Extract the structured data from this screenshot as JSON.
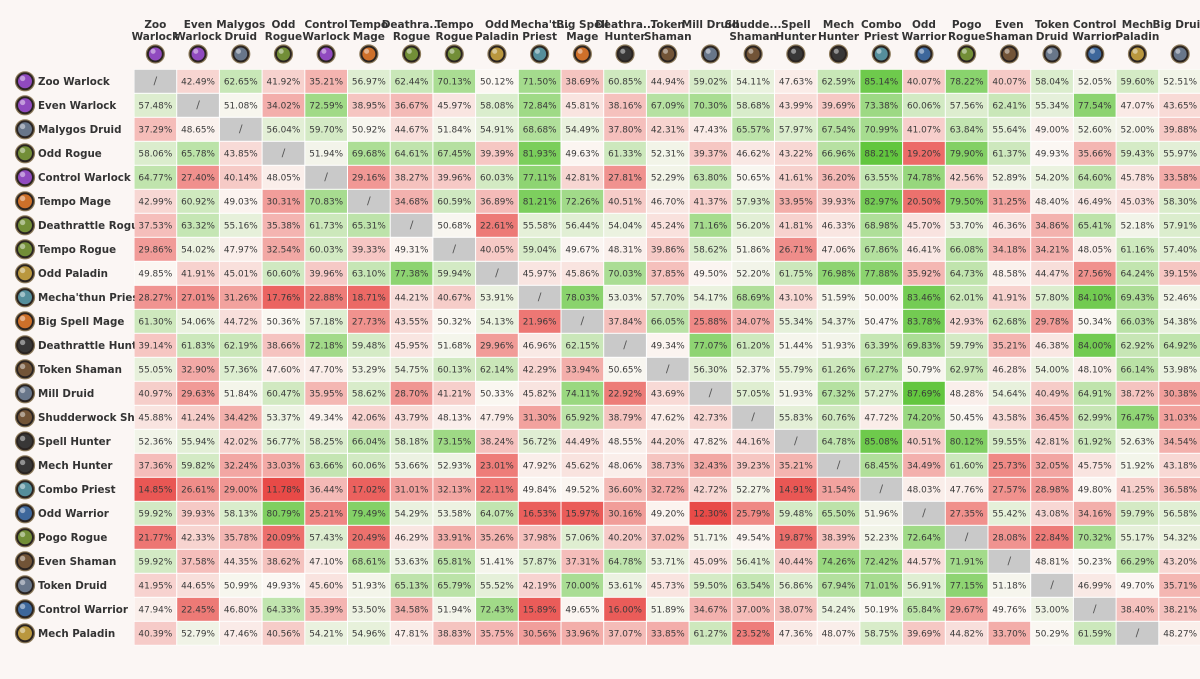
{
  "chart_data": {
    "type": "heatmap",
    "title": "",
    "value_format": "percent",
    "diagonal_mark": "/",
    "color_scale": {
      "low": "#e84a47",
      "mid": "#fbf7f3",
      "high": "#62c63e",
      "diagonal": "#c9c9c9",
      "domain": [
        12,
        50,
        88
      ]
    },
    "columns": [
      {
        "line1": "Zoo",
        "line2": "Warlock",
        "icon": "warlock-icon",
        "color": "#9b4fd0"
      },
      {
        "line1": "Even",
        "line2": "Warlock",
        "icon": "warlock-icon",
        "color": "#9b4fd0"
      },
      {
        "line1": "Malygos",
        "line2": "Druid",
        "icon": "druid-icon",
        "color": "#6f7f96"
      },
      {
        "line1": "Odd",
        "line2": "Rogue",
        "icon": "rogue-icon",
        "color": "#7a9a3a"
      },
      {
        "line1": "Control",
        "line2": "Warlock",
        "icon": "warlock-icon",
        "color": "#9b4fd0"
      },
      {
        "line1": "Tempo",
        "line2": "Mage",
        "icon": "mage-icon",
        "color": "#e0792b"
      },
      {
        "line1": "Deathra...",
        "line2": "Rogue",
        "icon": "rogue-icon",
        "color": "#7a9a3a"
      },
      {
        "line1": "Tempo",
        "line2": "Rogue",
        "icon": "rogue-icon",
        "color": "#7a9a3a"
      },
      {
        "line1": "Odd",
        "line2": "Paladin",
        "icon": "paladin-icon",
        "color": "#c9a441"
      },
      {
        "line1": "Mecha't...",
        "line2": "Priest",
        "icon": "priest-icon",
        "color": "#5a9aa8"
      },
      {
        "line1": "Big Spell",
        "line2": "Mage",
        "icon": "mage-icon",
        "color": "#e0792b"
      },
      {
        "line1": "Deathra...",
        "line2": "Hunter",
        "icon": "hunter-icon",
        "color": "#3a3a3a"
      },
      {
        "line1": "Token",
        "line2": "Shaman",
        "icon": "shaman-icon",
        "color": "#7a5a3a"
      },
      {
        "line1": "Mill Druid",
        "line2": "",
        "icon": "druid-icon",
        "color": "#6f7f96"
      },
      {
        "line1": "Shudde...",
        "line2": "Shaman",
        "icon": "shaman-icon",
        "color": "#7a5a3a"
      },
      {
        "line1": "Spell",
        "line2": "Hunter",
        "icon": "hunter-icon",
        "color": "#3a3a3a"
      },
      {
        "line1": "Mech",
        "line2": "Hunter",
        "icon": "hunter-icon",
        "color": "#3a3a3a"
      },
      {
        "line1": "Combo",
        "line2": "Priest",
        "icon": "priest-icon",
        "color": "#5a9aa8"
      },
      {
        "line1": "Odd",
        "line2": "Warrior",
        "icon": "warrior-icon",
        "color": "#3f6fa8"
      },
      {
        "line1": "Pogo",
        "line2": "Rogue",
        "icon": "rogue-icon",
        "color": "#7a9a3a"
      },
      {
        "line1": "Even",
        "line2": "Shaman",
        "icon": "shaman-icon",
        "color": "#7a5a3a"
      },
      {
        "line1": "Token",
        "line2": "Druid",
        "icon": "druid-icon",
        "color": "#6f7f96"
      },
      {
        "line1": "Control",
        "line2": "Warrior",
        "icon": "warrior-icon",
        "color": "#3f6fa8"
      },
      {
        "line1": "Mech",
        "line2": "Paladin",
        "icon": "paladin-icon",
        "color": "#c9a441"
      },
      {
        "line1": "Big Druid",
        "line2": "",
        "icon": "druid-icon",
        "color": "#6f7f96"
      }
    ],
    "rows": [
      {
        "label": "Zoo Warlock",
        "icon": "warlock-icon",
        "color": "#9b4fd0",
        "values": [
          null,
          42.49,
          62.65,
          41.92,
          35.21,
          56.97,
          62.44,
          70.13,
          50.12,
          71.5,
          38.69,
          60.85,
          44.94,
          59.02,
          54.11,
          47.63,
          62.59,
          85.14,
          40.07,
          78.22,
          40.07,
          58.04,
          52.05,
          59.6,
          52.51
        ]
      },
      {
        "label": "Even Warlock",
        "icon": "warlock-icon",
        "color": "#9b4fd0",
        "values": [
          57.48,
          null,
          51.08,
          34.02,
          72.59,
          38.95,
          36.67,
          45.97,
          58.08,
          72.84,
          45.81,
          38.16,
          67.09,
          70.3,
          58.68,
          43.99,
          39.69,
          73.38,
          60.06,
          57.56,
          62.41,
          55.34,
          77.54,
          47.07,
          43.65
        ]
      },
      {
        "label": "Malygos Druid",
        "icon": "druid-icon",
        "color": "#6f7f96",
        "values": [
          37.29,
          48.65,
          null,
          56.04,
          59.7,
          50.92,
          44.67,
          51.84,
          54.91,
          68.68,
          54.49,
          37.8,
          42.31,
          47.43,
          65.57,
          57.97,
          67.54,
          70.99,
          41.07,
          63.84,
          55.64,
          49.0,
          52.6,
          52.0,
          39.88
        ]
      },
      {
        "label": "Odd Rogue",
        "icon": "rogue-icon",
        "color": "#7a9a3a",
        "values": [
          58.06,
          65.78,
          43.85,
          null,
          51.94,
          69.68,
          64.61,
          67.45,
          39.39,
          81.93,
          49.63,
          61.33,
          52.31,
          39.37,
          46.62,
          43.22,
          66.96,
          88.21,
          19.2,
          79.9,
          61.37,
          49.93,
          35.66,
          59.43,
          55.97
        ]
      },
      {
        "label": "Control Warlock",
        "icon": "warlock-icon",
        "color": "#9b4fd0",
        "values": [
          64.77,
          27.4,
          40.14,
          48.05,
          null,
          29.16,
          38.27,
          39.96,
          60.03,
          77.11,
          42.81,
          27.81,
          52.29,
          63.8,
          50.65,
          41.61,
          36.2,
          63.55,
          74.78,
          42.56,
          52.89,
          54.2,
          64.6,
          45.78,
          33.58
        ]
      },
      {
        "label": "Tempo Mage",
        "icon": "mage-icon",
        "color": "#e0792b",
        "values": [
          42.99,
          60.92,
          49.03,
          30.31,
          70.83,
          null,
          34.68,
          60.59,
          36.89,
          81.21,
          72.26,
          40.51,
          46.7,
          41.37,
          57.93,
          33.95,
          39.93,
          82.97,
          20.5,
          79.5,
          31.25,
          48.4,
          46.49,
          45.03,
          58.3
        ]
      },
      {
        "label": "Deathrattle Rogue",
        "icon": "rogue-icon",
        "color": "#7a9a3a",
        "values": [
          37.53,
          63.32,
          55.16,
          35.38,
          61.73,
          65.31,
          null,
          50.68,
          22.61,
          55.58,
          56.44,
          54.04,
          45.24,
          71.16,
          56.2,
          41.81,
          46.33,
          68.98,
          45.7,
          53.7,
          46.36,
          34.86,
          65.41,
          52.18,
          57.91
        ]
      },
      {
        "label": "Tempo Rogue",
        "icon": "rogue-icon",
        "color": "#7a9a3a",
        "values": [
          29.86,
          54.02,
          47.97,
          32.54,
          60.03,
          39.33,
          49.31,
          null,
          40.05,
          59.04,
          49.67,
          48.31,
          39.86,
          58.62,
          51.86,
          26.71,
          47.06,
          67.86,
          46.41,
          66.08,
          34.18,
          34.21,
          48.05,
          61.16,
          57.4
        ]
      },
      {
        "label": "Odd Paladin",
        "icon": "paladin-icon",
        "color": "#c9a441",
        "values": [
          49.85,
          41.91,
          45.01,
          60.6,
          39.96,
          63.1,
          77.38,
          59.94,
          null,
          45.97,
          45.86,
          70.03,
          37.85,
          49.5,
          52.2,
          61.75,
          76.98,
          77.88,
          35.92,
          64.73,
          48.58,
          44.47,
          27.56,
          64.24,
          39.15
        ]
      },
      {
        "label": "Mecha'thun Priest",
        "icon": "priest-icon",
        "color": "#5a9aa8",
        "values": [
          28.27,
          27.01,
          31.26,
          17.76,
          22.88,
          18.71,
          44.21,
          40.67,
          53.91,
          null,
          78.03,
          53.03,
          57.7,
          54.17,
          68.69,
          43.1,
          51.59,
          50.0,
          83.46,
          62.01,
          41.91,
          57.8,
          84.1,
          69.43,
          52.46
        ]
      },
      {
        "label": "Big Spell Mage",
        "icon": "mage-icon",
        "color": "#e0792b",
        "values": [
          61.3,
          54.06,
          44.72,
          50.36,
          57.18,
          27.73,
          43.55,
          50.32,
          54.13,
          21.96,
          null,
          37.84,
          66.05,
          25.88,
          34.07,
          55.34,
          54.37,
          50.47,
          83.78,
          42.93,
          62.68,
          29.78,
          50.34,
          66.03,
          54.38
        ]
      },
      {
        "label": "Deathrattle Hunter",
        "icon": "hunter-icon",
        "color": "#3a3a3a",
        "values": [
          39.14,
          61.83,
          62.19,
          38.66,
          72.18,
          59.48,
          45.95,
          51.68,
          29.96,
          46.96,
          62.15,
          null,
          49.34,
          77.07,
          61.2,
          51.44,
          51.93,
          63.39,
          69.83,
          59.79,
          35.21,
          46.38,
          84.0,
          62.92,
          64.92
        ]
      },
      {
        "label": "Token Shaman",
        "icon": "shaman-icon",
        "color": "#7a5a3a",
        "values": [
          55.05,
          32.9,
          57.36,
          47.6,
          47.7,
          53.29,
          54.75,
          60.13,
          62.14,
          42.29,
          33.94,
          50.65,
          null,
          56.3,
          52.37,
          55.79,
          61.26,
          67.27,
          50.79,
          62.97,
          46.28,
          54.0,
          48.1,
          66.14,
          53.98
        ]
      },
      {
        "label": "Mill Druid",
        "icon": "druid-icon",
        "color": "#6f7f96",
        "values": [
          40.97,
          29.63,
          51.84,
          60.47,
          35.95,
          58.62,
          28.7,
          41.21,
          50.33,
          45.82,
          74.11,
          22.92,
          43.69,
          null,
          57.05,
          51.93,
          67.32,
          57.27,
          87.69,
          48.28,
          54.64,
          40.49,
          64.91,
          38.72,
          30.38
        ]
      },
      {
        "label": "Shudderwock Shaman",
        "icon": "shaman-icon",
        "color": "#7a5a3a",
        "values": [
          45.88,
          41.24,
          34.42,
          53.37,
          49.34,
          42.06,
          43.79,
          48.13,
          47.79,
          31.3,
          65.92,
          38.79,
          47.62,
          42.73,
          null,
          55.83,
          60.76,
          47.72,
          74.2,
          50.45,
          43.58,
          36.45,
          62.99,
          76.47,
          31.03
        ]
      },
      {
        "label": "Spell Hunter",
        "icon": "hunter-icon",
        "color": "#3a3a3a",
        "values": [
          52.36,
          55.94,
          42.02,
          56.77,
          58.25,
          66.04,
          58.18,
          73.15,
          38.24,
          56.72,
          44.49,
          48.55,
          44.2,
          47.82,
          44.16,
          null,
          64.78,
          85.08,
          40.51,
          80.12,
          59.55,
          42.81,
          61.92,
          52.63,
          34.54
        ]
      },
      {
        "label": "Mech Hunter",
        "icon": "hunter-icon",
        "color": "#3a3a3a",
        "values": [
          37.36,
          59.82,
          32.24,
          33.03,
          63.66,
          60.06,
          53.66,
          52.93,
          23.01,
          47.92,
          45.62,
          48.06,
          38.73,
          32.43,
          39.23,
          35.21,
          null,
          68.45,
          34.49,
          61.6,
          25.73,
          32.05,
          45.75,
          51.92,
          43.18
        ]
      },
      {
        "label": "Combo Priest",
        "icon": "priest-icon",
        "color": "#5a9aa8",
        "values": [
          14.85,
          26.61,
          29.0,
          11.78,
          36.44,
          17.02,
          31.01,
          32.13,
          22.11,
          49.84,
          49.52,
          36.6,
          32.72,
          42.72,
          52.27,
          14.91,
          31.54,
          null,
          48.03,
          47.76,
          27.57,
          28.98,
          49.8,
          41.25,
          36.58
        ]
      },
      {
        "label": "Odd Warrior",
        "icon": "warrior-icon",
        "color": "#3f6fa8",
        "values": [
          59.92,
          39.93,
          58.13,
          80.79,
          25.21,
          79.49,
          54.29,
          53.58,
          64.07,
          16.53,
          15.97,
          30.16,
          49.2,
          12.3,
          25.79,
          59.48,
          65.5,
          51.96,
          null,
          27.35,
          55.42,
          43.08,
          34.16,
          59.79,
          56.58
        ]
      },
      {
        "label": "Pogo Rogue",
        "icon": "rogue-icon",
        "color": "#7a9a3a",
        "values": [
          21.77,
          42.33,
          35.78,
          20.09,
          57.43,
          20.49,
          46.29,
          33.91,
          35.26,
          37.98,
          57.06,
          40.2,
          37.02,
          51.71,
          49.54,
          19.87,
          38.39,
          52.23,
          72.64,
          null,
          28.08,
          22.84,
          70.32,
          55.17,
          54.32
        ]
      },
      {
        "label": "Even Shaman",
        "icon": "shaman-icon",
        "color": "#7a5a3a",
        "values": [
          59.92,
          37.58,
          44.35,
          38.62,
          47.1,
          68.61,
          53.63,
          65.81,
          51.41,
          57.87,
          37.31,
          64.78,
          53.71,
          45.09,
          56.41,
          40.44,
          74.26,
          72.42,
          44.57,
          71.91,
          null,
          48.81,
          50.23,
          66.29,
          43.2
        ]
      },
      {
        "label": "Token Druid",
        "icon": "druid-icon",
        "color": "#6f7f96",
        "values": [
          41.95,
          44.65,
          50.99,
          49.93,
          45.6,
          51.93,
          65.13,
          65.79,
          55.52,
          42.19,
          70.0,
          53.61,
          45.73,
          59.5,
          63.54,
          56.86,
          67.94,
          71.01,
          56.91,
          77.15,
          51.18,
          null,
          46.99,
          49.7,
          35.71
        ]
      },
      {
        "label": "Control Warrior",
        "icon": "warrior-icon",
        "color": "#3f6fa8",
        "values": [
          47.94,
          22.45,
          46.8,
          64.33,
          35.39,
          53.5,
          34.58,
          51.94,
          72.43,
          15.89,
          49.65,
          16.0,
          51.89,
          34.67,
          37.0,
          38.07,
          54.24,
          50.19,
          65.84,
          29.67,
          49.76,
          53.0,
          null,
          38.4,
          38.21
        ]
      },
      {
        "label": "Mech Paladin",
        "icon": "paladin-icon",
        "color": "#c9a441",
        "values": [
          40.39,
          52.79,
          47.46,
          40.56,
          54.21,
          54.96,
          47.81,
          38.83,
          35.75,
          30.56,
          33.96,
          37.07,
          33.85,
          61.27,
          23.52,
          47.36,
          48.07,
          58.75,
          39.69,
          44.82,
          33.7,
          50.29,
          61.59,
          null,
          48.27
        ]
      }
    ]
  }
}
